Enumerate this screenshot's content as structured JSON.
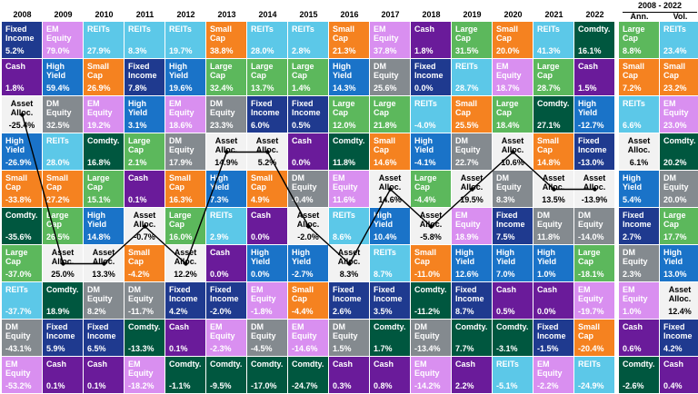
{
  "colors": {
    "Fixed Income": "#1f3a8f",
    "EM Equity": "#d98ff0",
    "REITs": "#5cc8e8",
    "Small Cap": "#f58220",
    "Cash": "#6a1b9a",
    "Comdty.": "#00573f",
    "Large Cap": "#5cb85c",
    "DM Equity": "#848a8f",
    "High Yield": "#1a73c8",
    "Asset Alloc.": "#f2f2f2"
  },
  "text_colors": {
    "Fixed Income": "#ffffff",
    "EM Equity": "#ffffff",
    "REITs": "#ffffff",
    "Small Cap": "#ffffff",
    "Cash": "#ffffff",
    "Comdty.": "#ffffff",
    "Large Cap": "#ffffff",
    "DM Equity": "#ffffff",
    "High Yield": "#ffffff",
    "Asset Alloc.": "#000000"
  },
  "chart_data": {
    "type": "table",
    "title": "",
    "span_header": "2008 - 2022",
    "columns": [
      "2008",
      "2009",
      "2010",
      "2011",
      "2012",
      "2013",
      "2014",
      "2015",
      "2016",
      "2017",
      "2018",
      "2019",
      "2020",
      "2021",
      "2022",
      "Ann.",
      "Vol."
    ],
    "cells": [
      [
        [
          "Fixed Income",
          "5.2%"
        ],
        [
          "EM Equity",
          "79.0%"
        ],
        [
          "REITs",
          "27.9%"
        ],
        [
          "REITs",
          "8.3%"
        ],
        [
          "REITs",
          "19.7%"
        ],
        [
          "Small Cap",
          "38.8%"
        ],
        [
          "REITs",
          "28.0%"
        ],
        [
          "REITs",
          "2.8%"
        ],
        [
          "Small Cap",
          "21.3%"
        ],
        [
          "EM Equity",
          "37.8%"
        ],
        [
          "Cash",
          "1.8%"
        ],
        [
          "Large Cap",
          "31.5%"
        ],
        [
          "Small Cap",
          "20.0%"
        ],
        [
          "REITs",
          "41.3%"
        ],
        [
          "Comdty.",
          "16.1%"
        ],
        [
          "Large Cap",
          "8.8%"
        ],
        [
          "REITs",
          "23.4%"
        ]
      ],
      [
        [
          "Cash",
          "1.8%"
        ],
        [
          "High Yield",
          "59.4%"
        ],
        [
          "Small Cap",
          "26.9%"
        ],
        [
          "Fixed Income",
          "7.8%"
        ],
        [
          "High Yield",
          "19.6%"
        ],
        [
          "Large Cap",
          "32.4%"
        ],
        [
          "Large Cap",
          "13.7%"
        ],
        [
          "Large Cap",
          "1.4%"
        ],
        [
          "High Yield",
          "14.3%"
        ],
        [
          "DM Equity",
          "25.6%"
        ],
        [
          "Fixed Income",
          "0.0%"
        ],
        [
          "REITs",
          "28.7%"
        ],
        [
          "EM Equity",
          "18.7%"
        ],
        [
          "Large Cap",
          "28.7%"
        ],
        [
          "Cash",
          "1.5%"
        ],
        [
          "Small Cap",
          "7.2%"
        ],
        [
          "Small Cap",
          "23.2%"
        ]
      ],
      [
        [
          "Asset Alloc.",
          "-25.4%"
        ],
        [
          "DM Equity",
          "32.5%"
        ],
        [
          "EM Equity",
          "19.2%"
        ],
        [
          "High Yield",
          "3.1%"
        ],
        [
          "EM Equity",
          "18.6%"
        ],
        [
          "DM Equity",
          "23.3%"
        ],
        [
          "Fixed Income",
          "6.0%"
        ],
        [
          "Fixed Income",
          "0.5%"
        ],
        [
          "Large Cap",
          "12.0%"
        ],
        [
          "Large Cap",
          "21.8%"
        ],
        [
          "REITs",
          "-4.0%"
        ],
        [
          "Small Cap",
          "25.5%"
        ],
        [
          "Large Cap",
          "18.4%"
        ],
        [
          "Comdty.",
          "27.1%"
        ],
        [
          "High Yield",
          "-12.7%"
        ],
        [
          "REITs",
          "6.6%"
        ],
        [
          "EM Equity",
          "23.0%"
        ]
      ],
      [
        [
          "High Yield",
          "-26.9%"
        ],
        [
          "REITs",
          "28.0%"
        ],
        [
          "Comdty.",
          "16.8%"
        ],
        [
          "Large Cap",
          "2.1%"
        ],
        [
          "DM Equity",
          "17.9%"
        ],
        [
          "Asset Alloc.",
          "14.9%"
        ],
        [
          "Asset Alloc.",
          "5.2%"
        ],
        [
          "Cash",
          "0.0%"
        ],
        [
          "Comdty.",
          "11.8%"
        ],
        [
          "Small Cap",
          "14.6%"
        ],
        [
          "High Yield",
          "-4.1%"
        ],
        [
          "DM Equity",
          "22.7%"
        ],
        [
          "Asset Alloc.",
          "10.6%"
        ],
        [
          "Small Cap",
          "14.8%"
        ],
        [
          "Fixed Income",
          "-13.0%"
        ],
        [
          "Asset Alloc.",
          "6.1%"
        ],
        [
          "Comdty.",
          "20.2%"
        ]
      ],
      [
        [
          "Small Cap",
          "-33.8%"
        ],
        [
          "Small Cap",
          "27.2%"
        ],
        [
          "Large Cap",
          "15.1%"
        ],
        [
          "Cash",
          "0.1%"
        ],
        [
          "Small Cap",
          "16.3%"
        ],
        [
          "High Yield",
          "7.3%"
        ],
        [
          "Small Cap",
          "4.9%"
        ],
        [
          "DM Equity",
          "-0.4%"
        ],
        [
          "EM Equity",
          "11.6%"
        ],
        [
          "Asset Alloc.",
          "14.6%"
        ],
        [
          "Large Cap",
          "-4.4%"
        ],
        [
          "Asset Alloc.",
          "19.5%"
        ],
        [
          "DM Equity",
          "8.3%"
        ],
        [
          "Asset Alloc.",
          "13.5%"
        ],
        [
          "Asset Alloc.",
          "-13.9%"
        ],
        [
          "High Yield",
          "5.4%"
        ],
        [
          "DM Equity",
          "20.0%"
        ]
      ],
      [
        [
          "Comdty.",
          "-35.6%"
        ],
        [
          "Large Cap",
          "26.5%"
        ],
        [
          "High Yield",
          "14.8%"
        ],
        [
          "Asset Alloc.",
          "-0.7%"
        ],
        [
          "Large Cap",
          "16.0%"
        ],
        [
          "REITs",
          "2.9%"
        ],
        [
          "Cash",
          "0.0%"
        ],
        [
          "Asset Alloc.",
          "-2.0%"
        ],
        [
          "REITs",
          "8.6%"
        ],
        [
          "High Yield",
          "10.4%"
        ],
        [
          "Asset Alloc.",
          "-5.8%"
        ],
        [
          "EM Equity",
          "18.9%"
        ],
        [
          "Fixed Income",
          "7.5%"
        ],
        [
          "DM Equity",
          "11.8%"
        ],
        [
          "DM Equity",
          "-14.0%"
        ],
        [
          "Fixed Income",
          "2.7%"
        ],
        [
          "Large Cap",
          "17.7%"
        ]
      ],
      [
        [
          "Large Cap",
          "-37.0%"
        ],
        [
          "Asset Alloc.",
          "25.0%"
        ],
        [
          "Asset Alloc.",
          "13.3%"
        ],
        [
          "Small Cap",
          "-4.2%"
        ],
        [
          "Asset Alloc.",
          "12.2%"
        ],
        [
          "Cash",
          "0.0%"
        ],
        [
          "High Yield",
          "0.0%"
        ],
        [
          "High Yield",
          "-2.7%"
        ],
        [
          "Asset Alloc.",
          "8.3%"
        ],
        [
          "REITs",
          "8.7%"
        ],
        [
          "Small Cap",
          "-11.0%"
        ],
        [
          "High Yield",
          "12.6%"
        ],
        [
          "High Yield",
          "7.0%"
        ],
        [
          "High Yield",
          "1.0%"
        ],
        [
          "Large Cap",
          "-18.1%"
        ],
        [
          "DM Equity",
          "2.3%"
        ],
        [
          "High Yield",
          "13.0%"
        ]
      ],
      [
        [
          "REITs",
          "-37.7%"
        ],
        [
          "Comdty.",
          "18.9%"
        ],
        [
          "DM Equity",
          "8.2%"
        ],
        [
          "DM Equity",
          "-11.7%"
        ],
        [
          "Fixed Income",
          "4.2%"
        ],
        [
          "Fixed Income",
          "-2.0%"
        ],
        [
          "EM Equity",
          "-1.8%"
        ],
        [
          "Small Cap",
          "-4.4%"
        ],
        [
          "Fixed Income",
          "2.6%"
        ],
        [
          "Fixed Income",
          "3.5%"
        ],
        [
          "Comdty.",
          "-11.2%"
        ],
        [
          "Fixed Income",
          "8.7%"
        ],
        [
          "Cash",
          "0.5%"
        ],
        [
          "Cash",
          "0.0%"
        ],
        [
          "EM Equity",
          "-19.7%"
        ],
        [
          "EM Equity",
          "1.0%"
        ],
        [
          "Asset Alloc.",
          "12.4%"
        ]
      ],
      [
        [
          "DM Equity",
          "-43.1%"
        ],
        [
          "Fixed Income",
          "5.9%"
        ],
        [
          "Fixed Income",
          "6.5%"
        ],
        [
          "Comdty.",
          "-13.3%"
        ],
        [
          "Cash",
          "0.1%"
        ],
        [
          "EM Equity",
          "-2.3%"
        ],
        [
          "DM Equity",
          "-4.5%"
        ],
        [
          "EM Equity",
          "-14.6%"
        ],
        [
          "DM Equity",
          "1.5%"
        ],
        [
          "Comdty.",
          "1.7%"
        ],
        [
          "DM Equity",
          "-13.4%"
        ],
        [
          "Comdty.",
          "7.7%"
        ],
        [
          "Comdty.",
          "-3.1%"
        ],
        [
          "Fixed Income",
          "-1.5%"
        ],
        [
          "Small Cap",
          "-20.4%"
        ],
        [
          "Cash",
          "0.6%"
        ],
        [
          "Fixed Income",
          "4.2%"
        ]
      ],
      [
        [
          "EM Equity",
          "-53.2%"
        ],
        [
          "Cash",
          "0.1%"
        ],
        [
          "Cash",
          "0.1%"
        ],
        [
          "EM Equity",
          "-18.2%"
        ],
        [
          "Comdty.",
          "-1.1%"
        ],
        [
          "Comdty.",
          "-9.5%"
        ],
        [
          "Comdty.",
          "-17.0%"
        ],
        [
          "Comdty.",
          "-24.7%"
        ],
        [
          "Cash",
          "0.3%"
        ],
        [
          "Cash",
          "0.8%"
        ],
        [
          "EM Equity",
          "-14.2%"
        ],
        [
          "Cash",
          "2.2%"
        ],
        [
          "REITs",
          "-5.1%"
        ],
        [
          "EM Equity",
          "-2.2%"
        ],
        [
          "REITs",
          "-24.9%"
        ],
        [
          "Comdty.",
          "-2.6%"
        ],
        [
          "Cash",
          "0.4%"
        ]
      ]
    ]
  }
}
